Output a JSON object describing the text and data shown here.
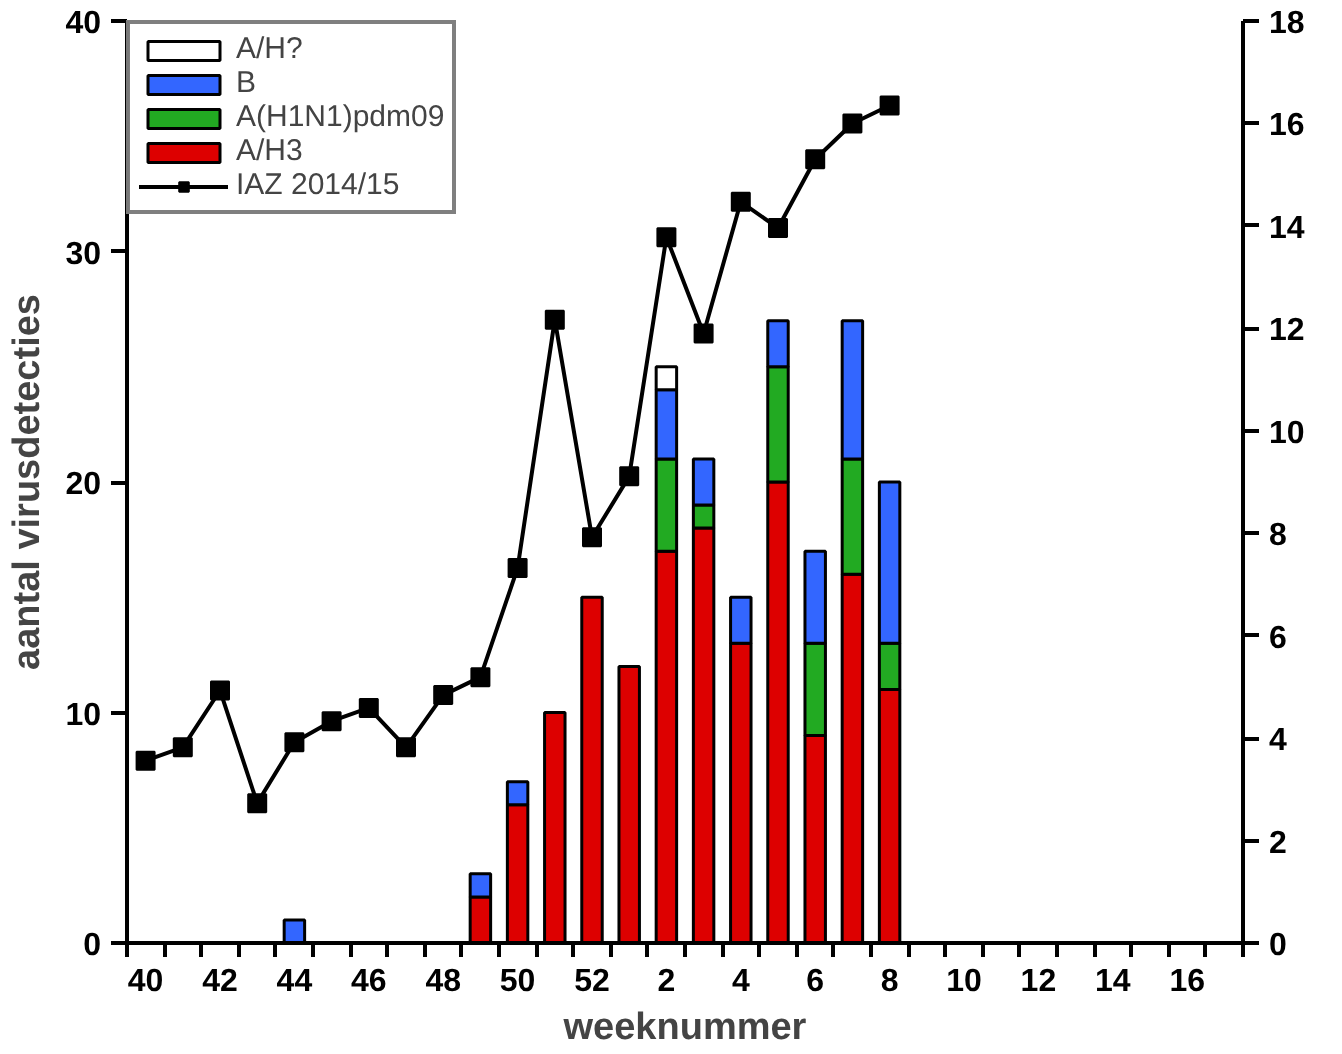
{
  "chart_data": {
    "type": "bar",
    "stacked": true,
    "xlabel": "weeknummer",
    "ylabel": "aantal virusdetecties",
    "categories": [
      "40",
      null,
      "42",
      null,
      "44",
      null,
      "46",
      null,
      "48",
      null,
      "50",
      null,
      "52",
      null,
      "2",
      null,
      "4",
      null,
      "6",
      null,
      "8",
      null,
      "10",
      null,
      "12",
      null,
      "14",
      null,
      "16",
      null
    ],
    "ylim": [
      0,
      40
    ],
    "yticks": [
      0,
      10,
      20,
      30,
      40
    ],
    "y2lim": [
      0,
      18
    ],
    "y2ticks": [
      0,
      2,
      4,
      6,
      8,
      10,
      12,
      14,
      16,
      18
    ],
    "legend": "top left",
    "marker": "square",
    "line_style": "solid",
    "series": [
      {
        "name": "A/H3",
        "color": "#dd0000",
        "values": [
          null,
          null,
          null,
          null,
          null,
          null,
          null,
          null,
          null,
          2,
          6,
          10,
          15,
          12,
          17,
          18,
          13,
          20,
          9,
          16,
          11,
          null,
          null,
          null,
          null,
          null,
          null,
          null,
          null,
          null
        ]
      },
      {
        "name": "A(H1N1)pdm09",
        "color": "#22aa22",
        "values": [
          null,
          null,
          null,
          null,
          null,
          null,
          null,
          null,
          null,
          null,
          null,
          null,
          null,
          null,
          4,
          1,
          null,
          5,
          4,
          5,
          2,
          null,
          null,
          null,
          null,
          null,
          null,
          null,
          null,
          null
        ]
      },
      {
        "name": "B",
        "color": "#3366ff",
        "values": [
          null,
          null,
          null,
          null,
          1,
          null,
          null,
          null,
          null,
          1,
          1,
          null,
          null,
          null,
          3,
          2,
          2,
          2,
          4,
          6,
          7,
          null,
          null,
          null,
          null,
          null,
          null,
          null,
          null,
          null
        ]
      },
      {
        "name": "A/H?",
        "color": "#ffffff",
        "values": [
          null,
          null,
          null,
          null,
          null,
          null,
          null,
          null,
          null,
          null,
          null,
          null,
          null,
          null,
          1,
          null,
          null,
          null,
          null,
          null,
          null,
          null,
          null,
          null,
          null,
          null,
          null,
          null,
          null,
          null
        ]
      },
      {
        "name": "IAZ 2014/15",
        "type": "line",
        "axis": "y2",
        "color": "#000000",
        "values": [
          3.56,
          3.82,
          4.93,
          2.73,
          3.92,
          4.33,
          4.59,
          3.82,
          4.84,
          5.19,
          7.32,
          12.17,
          7.92,
          9.11,
          13.78,
          11.9,
          14.47,
          13.96,
          15.3,
          16.0,
          16.35,
          null,
          null,
          null,
          null,
          null,
          null,
          null,
          null,
          null
        ]
      }
    ]
  }
}
